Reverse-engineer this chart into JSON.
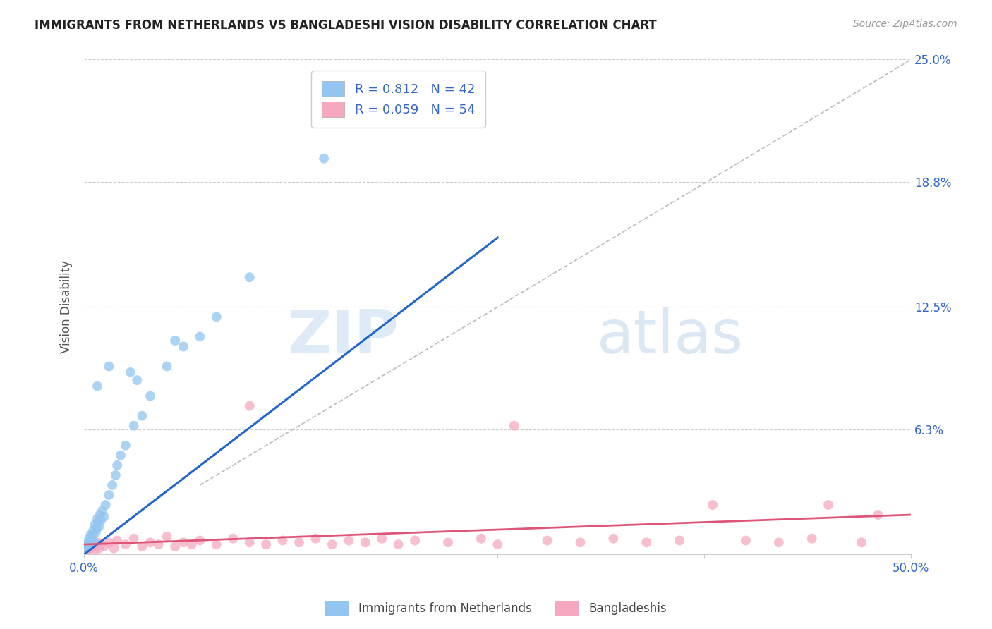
{
  "title": "IMMIGRANTS FROM NETHERLANDS VS BANGLADESHI VISION DISABILITY CORRELATION CHART",
  "source": "Source: ZipAtlas.com",
  "ylabel": "Vision Disability",
  "xlim": [
    0.0,
    50.0
  ],
  "ylim": [
    0.0,
    25.0
  ],
  "yticks_right": [
    0.0,
    6.3,
    12.5,
    18.8,
    25.0
  ],
  "ytick_labels_right": [
    "",
    "6.3%",
    "12.5%",
    "18.8%",
    "25.0%"
  ],
  "gridline_y": [
    6.3,
    12.5,
    18.8,
    25.0
  ],
  "blue_R": 0.812,
  "blue_N": 42,
  "pink_R": 0.059,
  "pink_N": 54,
  "blue_color": "#92C5F0",
  "pink_color": "#F5A8BE",
  "blue_line_color": "#2266CC",
  "pink_line_color": "#DD5577",
  "blue_scatter": [
    [
      0.1,
      0.3
    ],
    [
      0.15,
      0.5
    ],
    [
      0.2,
      0.4
    ],
    [
      0.25,
      0.6
    ],
    [
      0.3,
      0.8
    ],
    [
      0.35,
      0.5
    ],
    [
      0.4,
      1.0
    ],
    [
      0.45,
      0.7
    ],
    [
      0.5,
      0.9
    ],
    [
      0.55,
      1.2
    ],
    [
      0.6,
      0.6
    ],
    [
      0.65,
      1.5
    ],
    [
      0.7,
      1.1
    ],
    [
      0.75,
      1.3
    ],
    [
      0.8,
      1.8
    ],
    [
      0.85,
      1.6
    ],
    [
      0.9,
      1.4
    ],
    [
      0.95,
      2.0
    ],
    [
      1.0,
      1.7
    ],
    [
      1.1,
      2.2
    ],
    [
      1.2,
      1.9
    ],
    [
      1.3,
      2.5
    ],
    [
      1.5,
      3.0
    ],
    [
      1.7,
      3.5
    ],
    [
      1.9,
      4.0
    ],
    [
      2.0,
      4.5
    ],
    [
      2.2,
      5.0
    ],
    [
      2.5,
      5.5
    ],
    [
      3.0,
      6.5
    ],
    [
      3.5,
      7.0
    ],
    [
      4.0,
      8.0
    ],
    [
      5.0,
      9.5
    ],
    [
      6.0,
      10.5
    ],
    [
      7.0,
      11.0
    ],
    [
      8.0,
      12.0
    ],
    [
      10.0,
      14.0
    ],
    [
      1.5,
      9.5
    ],
    [
      2.8,
      9.2
    ],
    [
      5.5,
      10.8
    ],
    [
      14.5,
      20.0
    ],
    [
      0.8,
      8.5
    ],
    [
      3.2,
      8.8
    ]
  ],
  "pink_scatter": [
    [
      0.1,
      0.2
    ],
    [
      0.2,
      0.3
    ],
    [
      0.3,
      0.4
    ],
    [
      0.4,
      0.3
    ],
    [
      0.5,
      0.5
    ],
    [
      0.6,
      0.2
    ],
    [
      0.7,
      0.4
    ],
    [
      0.8,
      0.6
    ],
    [
      0.9,
      0.3
    ],
    [
      1.0,
      0.5
    ],
    [
      1.2,
      0.4
    ],
    [
      1.5,
      0.6
    ],
    [
      1.8,
      0.3
    ],
    [
      2.0,
      0.7
    ],
    [
      2.5,
      0.5
    ],
    [
      3.0,
      0.8
    ],
    [
      3.5,
      0.4
    ],
    [
      4.0,
      0.6
    ],
    [
      4.5,
      0.5
    ],
    [
      5.0,
      0.9
    ],
    [
      5.5,
      0.4
    ],
    [
      6.0,
      0.6
    ],
    [
      6.5,
      0.5
    ],
    [
      7.0,
      0.7
    ],
    [
      8.0,
      0.5
    ],
    [
      9.0,
      0.8
    ],
    [
      10.0,
      0.6
    ],
    [
      11.0,
      0.5
    ],
    [
      12.0,
      0.7
    ],
    [
      13.0,
      0.6
    ],
    [
      14.0,
      0.8
    ],
    [
      15.0,
      0.5
    ],
    [
      16.0,
      0.7
    ],
    [
      17.0,
      0.6
    ],
    [
      18.0,
      0.8
    ],
    [
      19.0,
      0.5
    ],
    [
      20.0,
      0.7
    ],
    [
      22.0,
      0.6
    ],
    [
      24.0,
      0.8
    ],
    [
      25.0,
      0.5
    ],
    [
      26.0,
      6.5
    ],
    [
      28.0,
      0.7
    ],
    [
      30.0,
      0.6
    ],
    [
      32.0,
      0.8
    ],
    [
      34.0,
      0.6
    ],
    [
      36.0,
      0.7
    ],
    [
      10.0,
      7.5
    ],
    [
      38.0,
      2.5
    ],
    [
      40.0,
      0.7
    ],
    [
      42.0,
      0.6
    ],
    [
      44.0,
      0.8
    ],
    [
      45.0,
      2.5
    ],
    [
      47.0,
      0.6
    ],
    [
      48.0,
      2.0
    ]
  ],
  "blue_line_x": [
    0.0,
    25.0
  ],
  "blue_line_y": [
    0.0,
    16.0
  ],
  "pink_line_x": [
    0.0,
    50.0
  ],
  "pink_line_y": [
    0.5,
    2.0
  ],
  "diag_line_x": [
    7.0,
    50.0
  ],
  "diag_line_y": [
    3.5,
    25.0
  ],
  "watermark_zip": "ZIP",
  "watermark_atlas": "atlas",
  "legend_blue_label": "Immigrants from Netherlands",
  "legend_pink_label": "Bangladeshis",
  "background_color": "#FFFFFF",
  "title_fontsize": 12,
  "tick_color": "#3366CC",
  "source_color": "#999999"
}
